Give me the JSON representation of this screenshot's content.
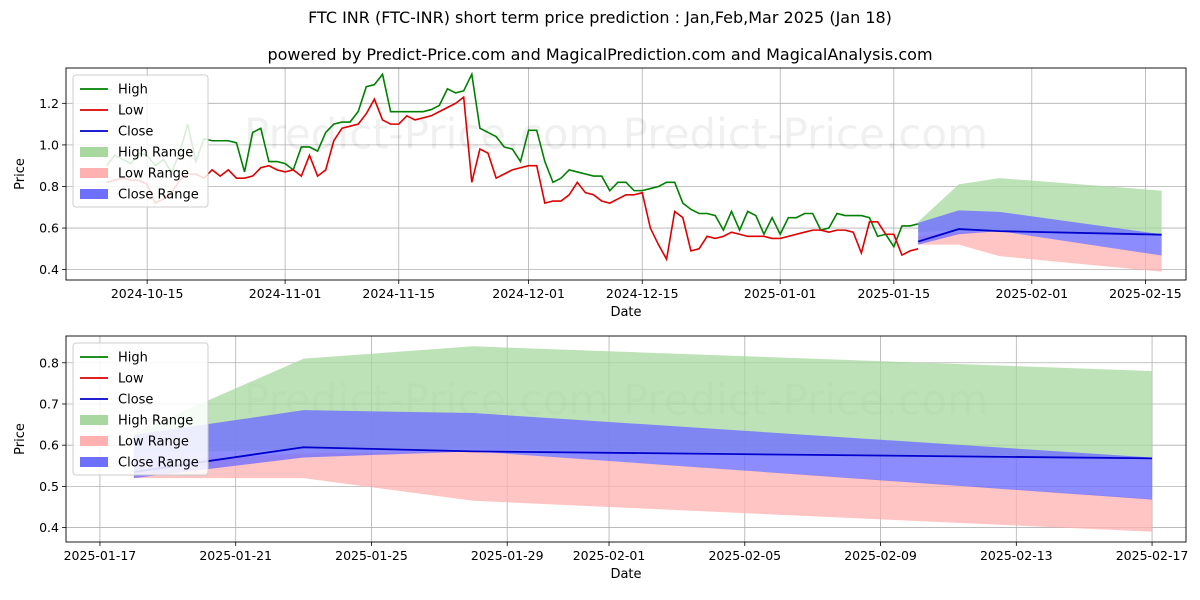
{
  "header": {
    "title": "FTC INR (FTC-INR) short term price prediction : Jan,Feb,Mar 2025 (Jan 18)",
    "subtitle": "powered by Predict-Price.com and MagicalPrediction.com and MagicalAnalysis.com"
  },
  "watermark": "Predict-Price.com",
  "colors": {
    "high": "#008000",
    "low": "#dd0000",
    "close": "#0000cc",
    "high_range": "#a8d8a0",
    "low_range": "#ffb0b0",
    "close_range": "#6f6fff"
  },
  "chart_data": [
    {
      "type": "line",
      "xlabel": "Date",
      "ylabel": "Price",
      "xlim": [
        "2024-10-05",
        "2025-02-20"
      ],
      "ylim": [
        0.35,
        1.37
      ],
      "yticks": [
        0.4,
        0.6,
        0.8,
        1.0,
        1.2
      ],
      "xticks": [
        "2024-10-15",
        "2024-11-01",
        "2024-11-15",
        "2024-12-01",
        "2024-12-15",
        "2025-01-01",
        "2025-01-15",
        "2025-02-01",
        "2025-02-15"
      ],
      "grid": true,
      "legend_position": "top-left",
      "legend": [
        "High",
        "Low",
        "Close",
        "High Range",
        "Low Range",
        "Close Range"
      ],
      "history_start": "2024-10-10",
      "series": [
        {
          "name": "High",
          "values": [
            0.9,
            0.95,
            0.93,
            0.91,
            0.96,
            0.95,
            0.9,
            0.93,
            0.87,
            0.96,
            1.1,
            0.92,
            1.03,
            1.02,
            1.02,
            1.02,
            1.01,
            0.87,
            1.06,
            1.08,
            0.92,
            0.92,
            0.91,
            0.88,
            0.99,
            0.99,
            0.97,
            1.06,
            1.1,
            1.11,
            1.11,
            1.16,
            1.28,
            1.29,
            1.34,
            1.16,
            1.16,
            1.16,
            1.16,
            1.16,
            1.17,
            1.19,
            1.27,
            1.25,
            1.26,
            1.34,
            1.08,
            1.06,
            1.04,
            0.99,
            0.98,
            0.92,
            1.07,
            1.07,
            0.92,
            0.82,
            0.84,
            0.88,
            0.87,
            0.86,
            0.85,
            0.85,
            0.78,
            0.82,
            0.82,
            0.78,
            0.78,
            0.79,
            0.8,
            0.82,
            0.82,
            0.72,
            0.69,
            0.67,
            0.67,
            0.66,
            0.59,
            0.68,
            0.59,
            0.68,
            0.66,
            0.57,
            0.65,
            0.57,
            0.65,
            0.65,
            0.67,
            0.67,
            0.59,
            0.6,
            0.67,
            0.66,
            0.66,
            0.66,
            0.65,
            0.56,
            0.57,
            0.51,
            0.61,
            0.61,
            0.62
          ]
        },
        {
          "name": "Low",
          "values": [
            0.82,
            0.83,
            0.84,
            0.83,
            0.83,
            0.81,
            0.72,
            0.74,
            0.77,
            0.83,
            0.86,
            0.86,
            0.84,
            0.88,
            0.85,
            0.88,
            0.84,
            0.84,
            0.85,
            0.89,
            0.9,
            0.88,
            0.87,
            0.88,
            0.85,
            0.95,
            0.85,
            0.88,
            1.02,
            1.08,
            1.09,
            1.1,
            1.15,
            1.22,
            1.12,
            1.1,
            1.1,
            1.14,
            1.12,
            1.13,
            1.14,
            1.16,
            1.18,
            1.2,
            1.23,
            0.82,
            0.98,
            0.96,
            0.84,
            0.86,
            0.88,
            0.89,
            0.9,
            0.9,
            0.72,
            0.73,
            0.73,
            0.76,
            0.82,
            0.77,
            0.76,
            0.73,
            0.72,
            0.74,
            0.76,
            0.76,
            0.77,
            0.6,
            0.52,
            0.45,
            0.68,
            0.65,
            0.49,
            0.5,
            0.56,
            0.55,
            0.56,
            0.58,
            0.57,
            0.56,
            0.56,
            0.56,
            0.55,
            0.55,
            0.56,
            0.57,
            0.58,
            0.59,
            0.59,
            0.58,
            0.59,
            0.59,
            0.58,
            0.48,
            0.63,
            0.63,
            0.57,
            0.57,
            0.47,
            0.49,
            0.5
          ]
        }
      ],
      "forecast": {
        "dates": [
          "2025-01-18",
          "2025-01-23",
          "2025-01-28",
          "2025-02-17"
        ],
        "close": [
          0.535,
          0.595,
          0.585,
          0.568
        ],
        "close_range": {
          "upper": [
            0.625,
            0.685,
            0.678,
            0.57
          ],
          "lower": [
            0.52,
            0.57,
            0.585,
            0.468
          ]
        },
        "high_range": {
          "upper": [
            0.63,
            0.81,
            0.84,
            0.78
          ],
          "lower": [
            0.58,
            0.59,
            0.59,
            0.57
          ]
        },
        "low_range": {
          "upper": [
            0.56,
            0.58,
            0.585,
            0.47
          ],
          "lower": [
            0.52,
            0.52,
            0.465,
            0.39
          ]
        }
      }
    },
    {
      "type": "line",
      "xlabel": "Date",
      "ylabel": "Price",
      "xlim": [
        "2025-01-16",
        "2025-02-18"
      ],
      "ylim": [
        0.365,
        0.865
      ],
      "yticks": [
        0.4,
        0.5,
        0.6,
        0.7,
        0.8
      ],
      "xticks": [
        "2025-01-17",
        "2025-01-21",
        "2025-01-25",
        "2025-01-29",
        "2025-02-01",
        "2025-02-05",
        "2025-02-09",
        "2025-02-13",
        "2025-02-17"
      ],
      "grid": true,
      "legend_position": "top-left",
      "legend": [
        "High",
        "Low",
        "Close",
        "High Range",
        "Low Range",
        "Close Range"
      ]
    }
  ]
}
